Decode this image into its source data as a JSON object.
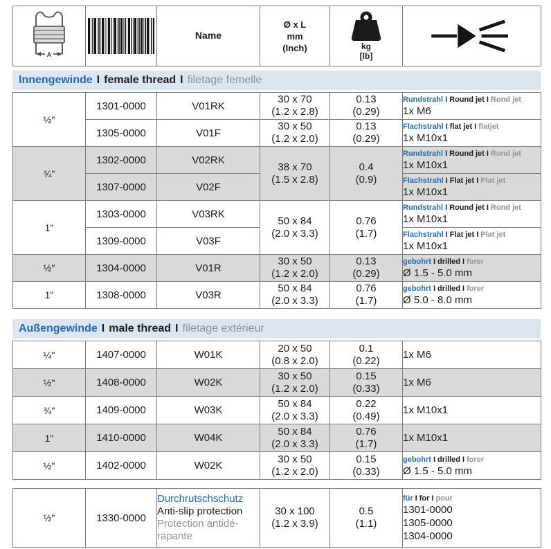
{
  "sep": "I",
  "colors": {
    "blue": "#1e6cb5",
    "gray_text": "#8f9296",
    "section_bar_bg": "#dce6f1",
    "row_shade": "#d9d9d9",
    "border": "#7a7a7a",
    "text": "#1c1c1c"
  },
  "header": {
    "name_label": "Name",
    "dims_lines": [
      "Ø x L",
      "mm",
      "(Inch)"
    ],
    "weight_kg": "kg",
    "weight_lb": "[lb]",
    "thread_dim_label": "A",
    "icons": [
      "pipe-internal-thread-icon",
      "barcode-icon",
      "weight-icon",
      "spray-jet-icon"
    ]
  },
  "sections": [
    {
      "title": {
        "de": "Innengewinde",
        "en": "female thread",
        "fr": "filetage femelle",
        "sep": "I"
      },
      "rows": [
        {
          "shaded": false,
          "size": "½\"",
          "size_span": 2,
          "article": "1301-0000",
          "name": "V01RK",
          "dims": [
            "30 x 70",
            "(1.2 x 2.8)"
          ],
          "weight": [
            "0.13",
            "(0.29)"
          ],
          "jet_type": [
            "Rundstrahl",
            "Round jet",
            "Rond jet"
          ],
          "jet_value": "1x M6"
        },
        {
          "shaded": false,
          "article": "1305-0000",
          "name": "V01F",
          "dims": [
            "30 x 50",
            "(1.2 x 2.0)"
          ],
          "weight": [
            "0.13",
            "(0.29)"
          ],
          "jet_type": [
            "Flachstrahl",
            "flat jet",
            "flatjet"
          ],
          "jet_value": "1x M10x1"
        },
        {
          "shaded": true,
          "size": "¾\"",
          "size_span": 2,
          "article": "1302-0000",
          "name": "V02RK",
          "dims": [
            "38 x 70",
            "(1.5 x 2.8)"
          ],
          "dims_span": 2,
          "weight": [
            "0.4",
            "(0.9)"
          ],
          "weight_span": 2,
          "jet_type": [
            "Rundstrahl",
            "Round jet",
            "Rond jet"
          ],
          "jet_value": "1x M10x1"
        },
        {
          "shaded": true,
          "article": "1307-0000",
          "name": "V02F",
          "jet_type": [
            "Flachstrahl",
            "Flat jet",
            "Plat jet"
          ],
          "jet_value": "1x M10x1"
        },
        {
          "shaded": false,
          "size": "1\"",
          "size_span": 2,
          "article": "1303-0000",
          "name": "V03RK",
          "dims": [
            "50 x 84",
            "(2.0 x 3.3)"
          ],
          "dims_span": 2,
          "weight": [
            "0.76",
            "(1.7)"
          ],
          "weight_span": 2,
          "jet_type": [
            "Rundstrahl",
            "Round jet",
            "Rond jet"
          ],
          "jet_value": "1x M10x1"
        },
        {
          "shaded": false,
          "article": "1309-0000",
          "name": "V03F",
          "jet_type": [
            "Flachstrahl",
            "Flat jet",
            "Plat jet"
          ],
          "jet_value": "1x M10x1"
        },
        {
          "shaded": true,
          "size": "½\"",
          "article": "1304-0000",
          "name": "V01R",
          "dims": [
            "30 x 50",
            "(1.2 x 2.0)"
          ],
          "weight": [
            "0.13",
            "(0.29)"
          ],
          "jet_type": [
            "gebohrt",
            "drilled",
            "forer"
          ],
          "jet_value": "Ø 1.5 - 5.0 mm"
        },
        {
          "shaded": false,
          "size": "1\"",
          "article": "1308-0000",
          "name": "V03R",
          "dims": [
            "50 x 84",
            "(2.0 x 3.3)"
          ],
          "weight": [
            "0.76",
            "(1.7)"
          ],
          "jet_type": [
            "gebohrt",
            "drilled",
            "forer"
          ],
          "jet_value": "Ø 5.0 - 8.0 mm"
        }
      ]
    },
    {
      "title": {
        "de": "Außengewinde",
        "en": "male thread",
        "fr": "filetage extérieur",
        "sep": "I"
      },
      "rows": [
        {
          "shaded": false,
          "size": "¼\"",
          "article": "1407-0000",
          "name": "W01K",
          "dims": [
            "20 x 50",
            "(0.8 x 2.0)"
          ],
          "weight": [
            "0.1",
            "(0.22)"
          ],
          "jet_value": "1x M6"
        },
        {
          "shaded": true,
          "size": "½\"",
          "article": "1408-0000",
          "name": "W02K",
          "dims": [
            "30 x 50",
            "(1.2 x 2.0)"
          ],
          "weight": [
            "0.15",
            "(0.33)"
          ],
          "jet_value": "1x M6"
        },
        {
          "shaded": false,
          "size": "¾\"",
          "article": "1409-0000",
          "name": "W03K",
          "dims": [
            "50 x 84",
            "(2.0 x 3.3)"
          ],
          "weight": [
            "0.22",
            "(0.49)"
          ],
          "jet_value": "1x M10x1"
        },
        {
          "shaded": true,
          "size": "1\"",
          "article": "1410-0000",
          "name": "W04K",
          "dims": [
            "50 x 84",
            "(2.0 x 3.3)"
          ],
          "weight": [
            "0.76",
            "(1.7)"
          ],
          "jet_value": "1x M10x1"
        },
        {
          "shaded": false,
          "size": "½\"",
          "article": "1402-0000",
          "name": "W02K",
          "dims": [
            "30 x 50",
            "(1.2 x 2.0)"
          ],
          "weight": [
            "0.15",
            "(0.33)"
          ],
          "jet_type": [
            "gebohrt",
            "drilled",
            "forer"
          ],
          "jet_value": "Ø 1.5 - 5.0 mm"
        }
      ]
    }
  ],
  "accessory": {
    "size": "½\"",
    "article": "1330-0000",
    "name_lines": [
      {
        "text": "Durchrutschschutz",
        "color": "blue"
      },
      {
        "text": "Anti-slip protection",
        "color": "black"
      },
      {
        "text": "Protection antidé-",
        "color": "gray"
      },
      {
        "text": "rapante",
        "color": "gray"
      }
    ],
    "dims": [
      "30 x 100",
      "(1.2 x 3.9)"
    ],
    "weight": [
      "0.5",
      "(1.1)"
    ],
    "for_label": [
      "für",
      "for",
      "pour"
    ],
    "for_articles": [
      "1301-0000",
      "1305-0000",
      "1304-0000"
    ]
  }
}
